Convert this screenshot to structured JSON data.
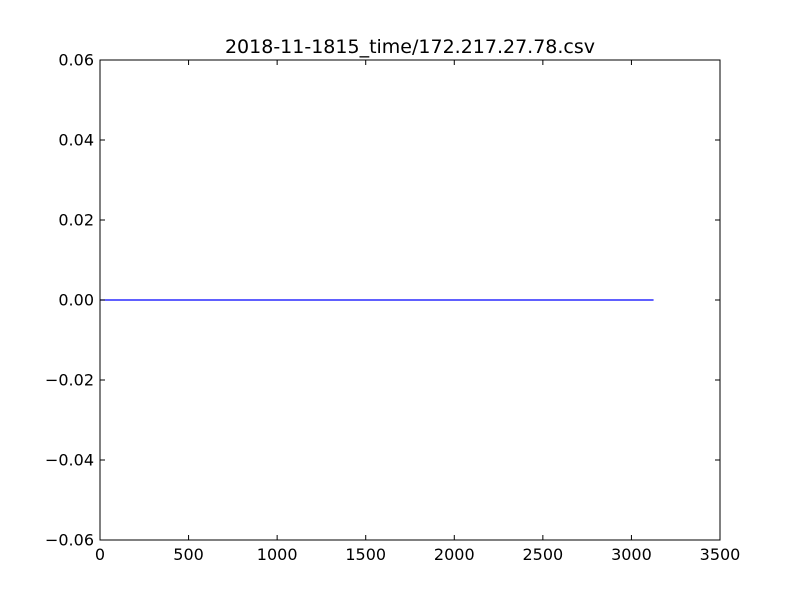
{
  "chart_data": {
    "type": "line",
    "title": "2018-11-1815_time/172.217.27.78.csv",
    "xlabel": "",
    "ylabel": "",
    "xlim": [
      0,
      3500
    ],
    "ylim": [
      -0.06,
      0.06
    ],
    "x_ticks": [
      0,
      500,
      1000,
      1500,
      2000,
      2500,
      3000,
      3500
    ],
    "y_ticks": [
      -0.06,
      -0.04,
      -0.02,
      0.0,
      0.02,
      0.04,
      0.06
    ],
    "x_tick_labels": [
      "0",
      "500",
      "1000",
      "1500",
      "2000",
      "2500",
      "3000",
      "3500"
    ],
    "y_tick_labels": [
      "−0.06",
      "−0.04",
      "−0.02",
      "0.00",
      "0.02",
      "0.04",
      "0.06"
    ],
    "grid": false,
    "series": [
      {
        "color": "#0000ff",
        "x": [
          0,
          3125
        ],
        "y": [
          0,
          0
        ]
      }
    ]
  }
}
